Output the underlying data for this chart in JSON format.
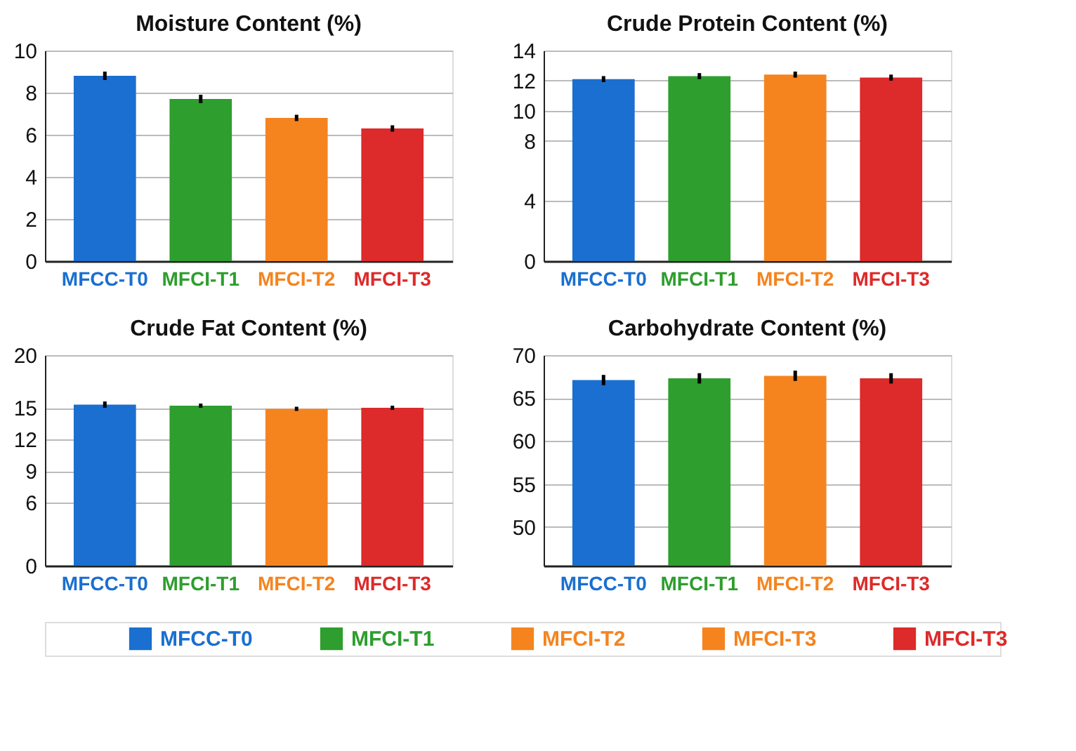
{
  "chart_data": [
    {
      "type": "bar",
      "title": "Moisture Content (%)",
      "categories": [
        "MFCC-T0",
        "MFCI-T1",
        "MFCI-T2",
        "MFCI-T3"
      ],
      "values": [
        8.8,
        7.7,
        6.8,
        6.3
      ],
      "errors": [
        0.2,
        0.2,
        0.15,
        0.15
      ],
      "colors": [
        "#1a6fd0",
        "#2e9e2e",
        "#f5841f",
        "#dd2a2a"
      ],
      "ylim": [
        0,
        10
      ],
      "yticks": [
        0,
        2,
        4,
        6,
        8,
        10
      ],
      "grid": "y"
    },
    {
      "type": "bar",
      "title": "Crude Protein Content (%)",
      "categories": [
        "MFCC-T0",
        "MFCI-T1",
        "MFCI-T2",
        "MFCI-T3"
      ],
      "values": [
        12.1,
        12.3,
        12.4,
        12.2
      ],
      "errors": [
        0.2,
        0.2,
        0.2,
        0.2
      ],
      "colors": [
        "#1a6fd0",
        "#2e9e2e",
        "#f5841f",
        "#dd2a2a"
      ],
      "ylim": [
        0,
        14
      ],
      "yticks": [
        0,
        4,
        8,
        10,
        12,
        14
      ],
      "grid": "y"
    },
    {
      "type": "bar",
      "title": "Crude Fat Content (%)",
      "categories": [
        "MFCC-T0",
        "MFCI-T1",
        "MFCI-T2",
        "MFCI-T3"
      ],
      "values": [
        15.3,
        15.2,
        14.9,
        15.0
      ],
      "errors": [
        0.3,
        0.2,
        0.2,
        0.2
      ],
      "colors": [
        "#1a6fd0",
        "#2e9e2e",
        "#f5841f",
        "#dd2a2a"
      ],
      "ylim": [
        0,
        20
      ],
      "yticks": [
        0,
        6,
        9,
        12,
        15,
        20
      ],
      "grid": "y"
    },
    {
      "type": "bar",
      "title": "Carbohydrate Content (%)",
      "categories": [
        "MFCC-T0",
        "MFCI-T1",
        "MFCI-T2",
        "MFCI-T3"
      ],
      "values": [
        67.1,
        67.3,
        67.6,
        67.3
      ],
      "errors": [
        0.6,
        0.6,
        0.6,
        0.6
      ],
      "colors": [
        "#1a6fd0",
        "#2e9e2e",
        "#f5841f",
        "#dd2a2a"
      ],
      "ylim": [
        45.5,
        70
      ],
      "yticks": [
        50,
        55,
        60,
        65,
        70
      ],
      "grid": "y"
    },
    {
      "type": "other",
      "legend": "bottom",
      "series": [
        {
          "name": "MFCC-T0",
          "color": "#1a6fd0"
        },
        {
          "name": "MFCI-T1",
          "color": "#2e9e2e"
        },
        {
          "name": "MFCI-T2",
          "color": "#f5841f"
        },
        {
          "name": "MFCI-T3",
          "color": "#f5841f"
        },
        {
          "name": "MFCI-T3",
          "color": "#dd2a2a"
        }
      ]
    }
  ]
}
